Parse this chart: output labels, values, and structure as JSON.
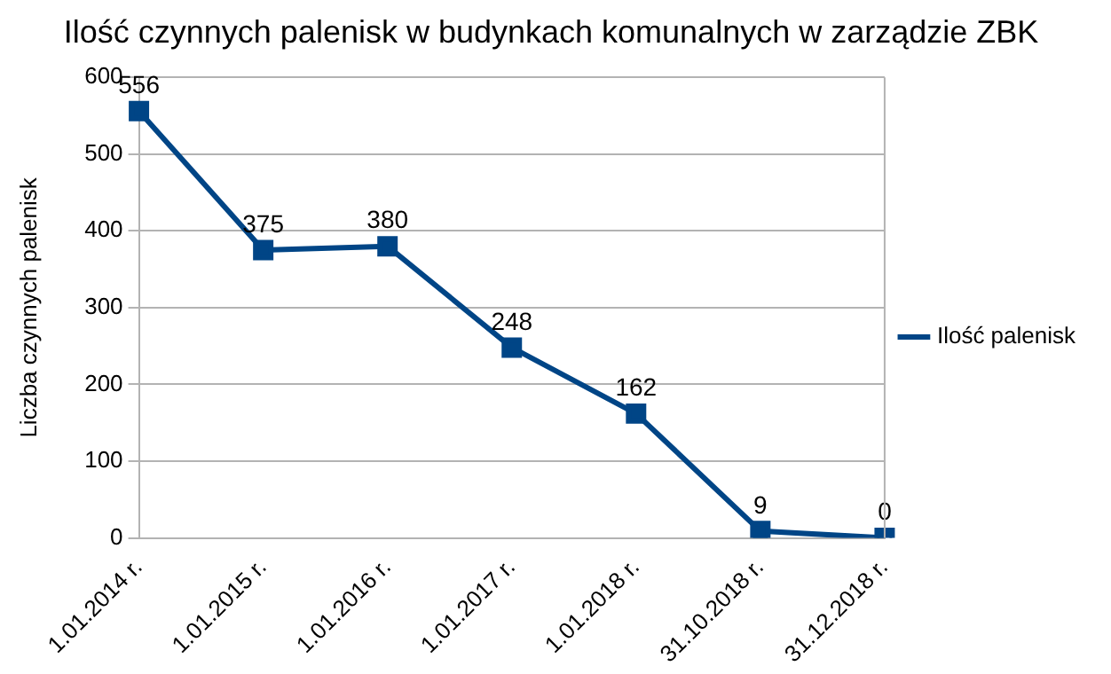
{
  "chart_data": {
    "type": "line",
    "title": "Ilość czynnych palenisk w budynkach komunalnych w zarządzie ZBK",
    "ylabel": "Liczba czynnych palenisk",
    "categories": [
      "1.01.2014 r.",
      "1.01.2015 r.",
      "1.01.2016 r.",
      "1.01.2017 r.",
      "1.01.2018 r.",
      "31.10.2018 r.",
      "31.12.2018 r."
    ],
    "series": [
      {
        "name": "Ilość palenisk",
        "color": "#004586",
        "values": [
          556,
          375,
          380,
          248,
          162,
          9,
          0
        ]
      }
    ],
    "ylim": [
      0,
      600
    ],
    "yticks": [
      0,
      100,
      200,
      300,
      400,
      500,
      600
    ],
    "grid": "y",
    "legend": "right",
    "marker": "square",
    "line_style": "solid",
    "data_labels": true
  }
}
